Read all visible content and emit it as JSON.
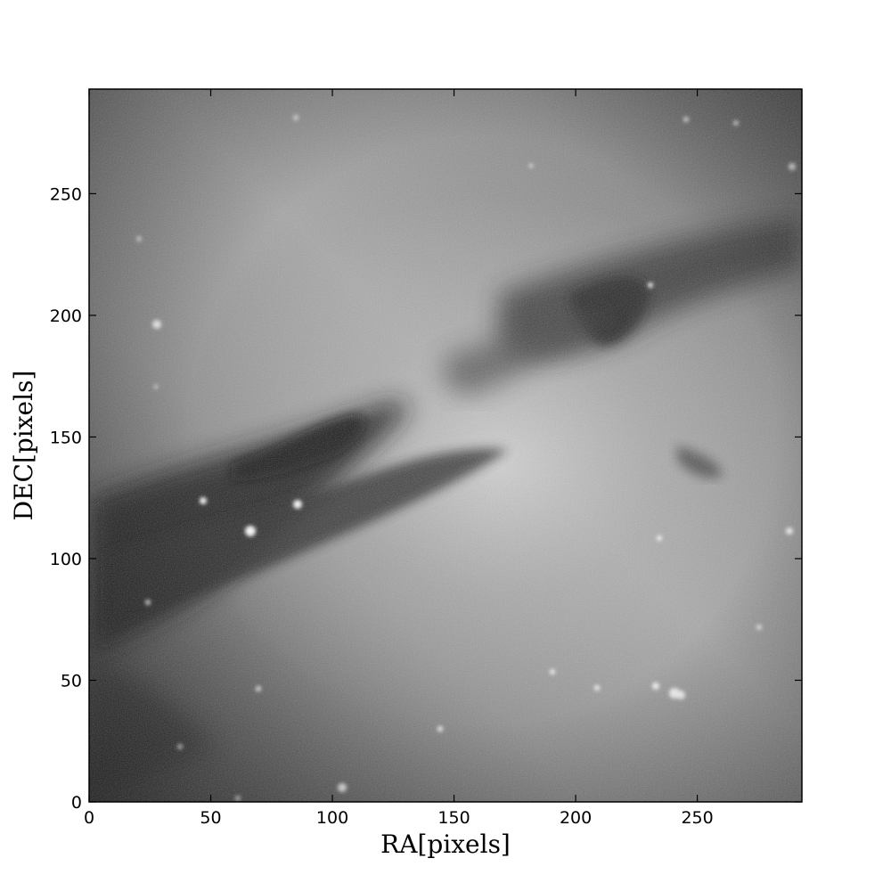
{
  "chart_data": {
    "type": "heatmap",
    "title": "",
    "xlabel": "RA[pixels]",
    "ylabel": "DEC[pixels]",
    "xlim": [
      0,
      293
    ],
    "ylim": [
      0,
      293
    ],
    "xticks": [
      0,
      50,
      100,
      150,
      200,
      250
    ],
    "yticks": [
      0,
      50,
      100,
      150,
      200,
      250
    ],
    "colormap": "gray",
    "grid": false,
    "content": "galaxy image with dark dust lane",
    "colors": {
      "axes": "#000000",
      "background": "#ffffff"
    }
  }
}
